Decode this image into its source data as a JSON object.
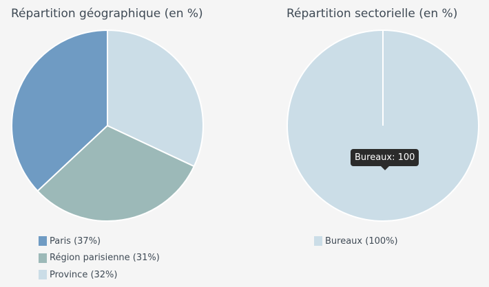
{
  "chart_data": [
    {
      "type": "pie",
      "title": "Répartition géographique (en %)",
      "slices": [
        {
          "label": "Paris",
          "legend": "Paris (37%)",
          "value": 37,
          "color": "#6f9bc3"
        },
        {
          "label": "Région parisienne",
          "legend": "Région parisienne (31%)",
          "value": 31,
          "color": "#9cb9b8"
        },
        {
          "label": "Province",
          "legend": "Province (32%)",
          "value": 32,
          "color": "#cbdde7"
        }
      ],
      "start": "top",
      "direction": "counterclockwise",
      "legend_position": "bottom-left"
    },
    {
      "type": "pie",
      "title": "Répartition sectorielle (en %)",
      "slices": [
        {
          "label": "Bureaux",
          "legend": "Bureaux (100%)",
          "value": 100,
          "color": "#cbdde7"
        }
      ],
      "tooltip": "Bureaux: 100",
      "legend_position": "bottom-left"
    }
  ]
}
